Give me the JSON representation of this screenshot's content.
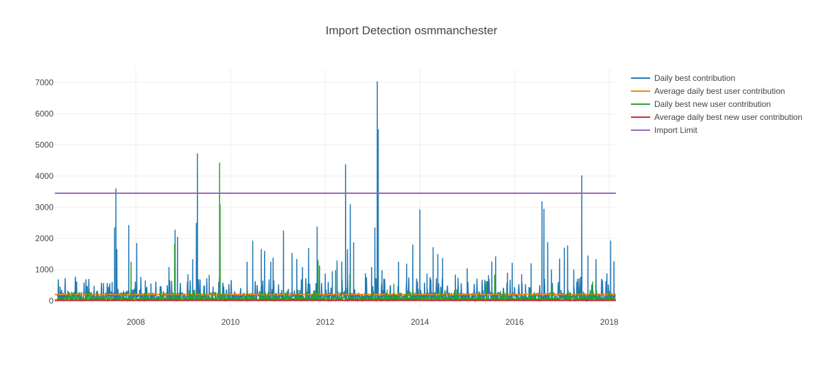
{
  "chart_data": {
    "type": "line",
    "title": "Import Detection osmmanchester",
    "xlabel": "",
    "ylabel": "",
    "x_range": [
      "2006-04-15",
      "2018-02-20"
    ],
    "xlim_years": [
      2006.29,
      2018.14
    ],
    "ylim": [
      -200,
      7450
    ],
    "y_ticks": [
      0,
      1000,
      2000,
      3000,
      4000,
      5000,
      6000,
      7000
    ],
    "x_ticks": [
      "2008",
      "2010",
      "2012",
      "2014",
      "2016",
      "2018"
    ],
    "grid": true,
    "legend_position": "top-right",
    "series": [
      {
        "name": "Daily best contribution",
        "color": "#1f77b4",
        "peaks": [
          {
            "x": 2006.4,
            "y": 450
          },
          {
            "x": 2007.02,
            "y": 300
          },
          {
            "x": 2007.12,
            "y": 480
          },
          {
            "x": 2007.42,
            "y": 440
          },
          {
            "x": 2007.5,
            "y": 600
          },
          {
            "x": 2007.55,
            "y": 2350
          },
          {
            "x": 2007.58,
            "y": 3600
          },
          {
            "x": 2007.6,
            "y": 1650
          },
          {
            "x": 2007.85,
            "y": 2430
          },
          {
            "x": 2008.02,
            "y": 1850
          },
          {
            "x": 2008.2,
            "y": 650
          },
          {
            "x": 2008.32,
            "y": 550
          },
          {
            "x": 2008.7,
            "y": 1080
          },
          {
            "x": 2008.83,
            "y": 2280
          },
          {
            "x": 2008.88,
            "y": 2050
          },
          {
            "x": 2009.1,
            "y": 850
          },
          {
            "x": 2009.2,
            "y": 1330
          },
          {
            "x": 2009.28,
            "y": 2500
          },
          {
            "x": 2009.3,
            "y": 4730
          },
          {
            "x": 2009.45,
            "y": 450
          },
          {
            "x": 2009.55,
            "y": 830
          },
          {
            "x": 2009.75,
            "y": 600
          },
          {
            "x": 2010.35,
            "y": 1250
          },
          {
            "x": 2010.47,
            "y": 1930
          },
          {
            "x": 2010.65,
            "y": 1660
          },
          {
            "x": 2010.72,
            "y": 1600
          },
          {
            "x": 2010.85,
            "y": 1250
          },
          {
            "x": 2010.9,
            "y": 1380
          },
          {
            "x": 2011.12,
            "y": 2250
          },
          {
            "x": 2011.3,
            "y": 1530
          },
          {
            "x": 2011.4,
            "y": 1340
          },
          {
            "x": 2011.52,
            "y": 1080
          },
          {
            "x": 2011.65,
            "y": 1690
          },
          {
            "x": 2011.83,
            "y": 2380
          },
          {
            "x": 2011.88,
            "y": 1130
          },
          {
            "x": 2012.0,
            "y": 870
          },
          {
            "x": 2012.15,
            "y": 950
          },
          {
            "x": 2012.25,
            "y": 1290
          },
          {
            "x": 2012.35,
            "y": 1260
          },
          {
            "x": 2012.43,
            "y": 4380
          },
          {
            "x": 2012.47,
            "y": 1650
          },
          {
            "x": 2012.53,
            "y": 3090
          },
          {
            "x": 2012.6,
            "y": 1870
          },
          {
            "x": 2012.85,
            "y": 880
          },
          {
            "x": 2012.98,
            "y": 1080
          },
          {
            "x": 2013.05,
            "y": 2350
          },
          {
            "x": 2013.1,
            "y": 7040
          },
          {
            "x": 2013.12,
            "y": 5500
          },
          {
            "x": 2013.2,
            "y": 980
          },
          {
            "x": 2013.38,
            "y": 500
          },
          {
            "x": 2013.55,
            "y": 1250
          },
          {
            "x": 2013.72,
            "y": 1190
          },
          {
            "x": 2013.85,
            "y": 1800
          },
          {
            "x": 2014.0,
            "y": 2930
          },
          {
            "x": 2014.15,
            "y": 870
          },
          {
            "x": 2014.28,
            "y": 1720
          },
          {
            "x": 2014.38,
            "y": 1500
          },
          {
            "x": 2014.48,
            "y": 1370
          },
          {
            "x": 2014.75,
            "y": 840
          },
          {
            "x": 2015.0,
            "y": 1040
          },
          {
            "x": 2015.45,
            "y": 820
          },
          {
            "x": 2015.52,
            "y": 1260
          },
          {
            "x": 2015.6,
            "y": 1420
          },
          {
            "x": 2015.85,
            "y": 900
          },
          {
            "x": 2015.95,
            "y": 1220
          },
          {
            "x": 2016.15,
            "y": 850
          },
          {
            "x": 2016.35,
            "y": 1200
          },
          {
            "x": 2016.58,
            "y": 3190
          },
          {
            "x": 2016.62,
            "y": 2950
          },
          {
            "x": 2016.7,
            "y": 1880
          },
          {
            "x": 2016.78,
            "y": 1000
          },
          {
            "x": 2016.95,
            "y": 1350
          },
          {
            "x": 2017.05,
            "y": 1700
          },
          {
            "x": 2017.12,
            "y": 1770
          },
          {
            "x": 2017.25,
            "y": 1000
          },
          {
            "x": 2017.42,
            "y": 4020
          },
          {
            "x": 2017.55,
            "y": 1450
          },
          {
            "x": 2017.72,
            "y": 1330
          },
          {
            "x": 2017.95,
            "y": 880
          },
          {
            "x": 2018.03,
            "y": 1930
          },
          {
            "x": 2018.1,
            "y": 1270
          }
        ]
      },
      {
        "name": "Average daily best user contribution",
        "color": "#ff7f0e",
        "value": 200
      },
      {
        "name": "Daily best new user contribution",
        "color": "#2ca02c",
        "peaks": [
          {
            "x": 2007.9,
            "y": 1250
          },
          {
            "x": 2008.82,
            "y": 1820
          },
          {
            "x": 2009.77,
            "y": 4430
          },
          {
            "x": 2009.78,
            "y": 3080
          },
          {
            "x": 2011.2,
            "y": 320
          },
          {
            "x": 2011.85,
            "y": 1300
          },
          {
            "x": 2012.22,
            "y": 980
          },
          {
            "x": 2012.52,
            "y": 850
          },
          {
            "x": 2013.02,
            "y": 300
          },
          {
            "x": 2013.45,
            "y": 540
          },
          {
            "x": 2014.45,
            "y": 390
          },
          {
            "x": 2015.4,
            "y": 620
          },
          {
            "x": 2015.58,
            "y": 840
          },
          {
            "x": 2016.8,
            "y": 470
          },
          {
            "x": 2017.65,
            "y": 620
          }
        ]
      },
      {
        "name": "Average daily best new user contribution",
        "color": "#d62728",
        "value": 20
      },
      {
        "name": "Import Limit",
        "color": "#9467bd",
        "value": 3450
      }
    ]
  }
}
